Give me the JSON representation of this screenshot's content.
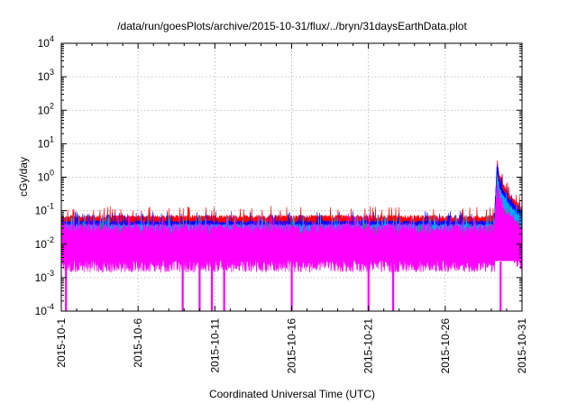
{
  "chart_data": {
    "type": "line",
    "title": "/data/run/goesPlots/archive/2015-10-31/flux/../bryn/31daysEarthData.plot",
    "xlabel": "Coordinated Universal Time (UTC)",
    "ylabel": "cGy/day",
    "x_range": [
      "2015-10-01",
      "2015-10-31"
    ],
    "x_tick_labels": [
      "2015-10-1",
      "2015-10-6",
      "2015-10-11",
      "2015-10-16",
      "2015-10-21",
      "2015-10-26",
      "2015-10-31"
    ],
    "x_tick_days": [
      1,
      6,
      11,
      16,
      21,
      26,
      31
    ],
    "yscale": "log",
    "ylim": [
      0.0001,
      10000
    ],
    "y_tick_values": [
      0.0001,
      0.001,
      0.01,
      0.1,
      1,
      10,
      100,
      1000,
      10000
    ],
    "y_tick_labels": [
      {
        "base": "10",
        "exp": "-4"
      },
      {
        "base": "10",
        "exp": "-3"
      },
      {
        "base": "10",
        "exp": "-2"
      },
      {
        "base": "10",
        "exp": "-1"
      },
      {
        "base": "10",
        "exp": "0"
      },
      {
        "base": "10",
        "exp": "1"
      },
      {
        "base": "10",
        "exp": "2"
      },
      {
        "base": "10",
        "exp": "3"
      },
      {
        "base": "10",
        "exp": "4"
      }
    ],
    "grid": true,
    "event": {
      "start_day": 29.2,
      "peak_day": 29.4
    },
    "drop_days": [
      1.3,
      8.9,
      10.0,
      10.8,
      11.6,
      16.0,
      21.0,
      22.6,
      29.6
    ],
    "series": [
      {
        "color": "#ff0000",
        "baseline": 0.045,
        "spread": 0.18,
        "peak": 2.4,
        "end": 0.08
      },
      {
        "color": "#0000ff",
        "baseline": 0.032,
        "spread": 0.17,
        "peak": 1.6,
        "end": 0.06
      },
      {
        "color": "#00aaff",
        "baseline": 0.026,
        "spread": 0.16,
        "peak": 1.0,
        "end": 0.045
      },
      {
        "color": "#00a060",
        "baseline": 0.017,
        "spread": 0.15,
        "peak": 0.35,
        "end": 0.025
      },
      {
        "color": "#ff00ff",
        "baseline": 0.0095,
        "spread": 0.55,
        "peak": 0.25,
        "end": 0.01
      }
    ]
  }
}
